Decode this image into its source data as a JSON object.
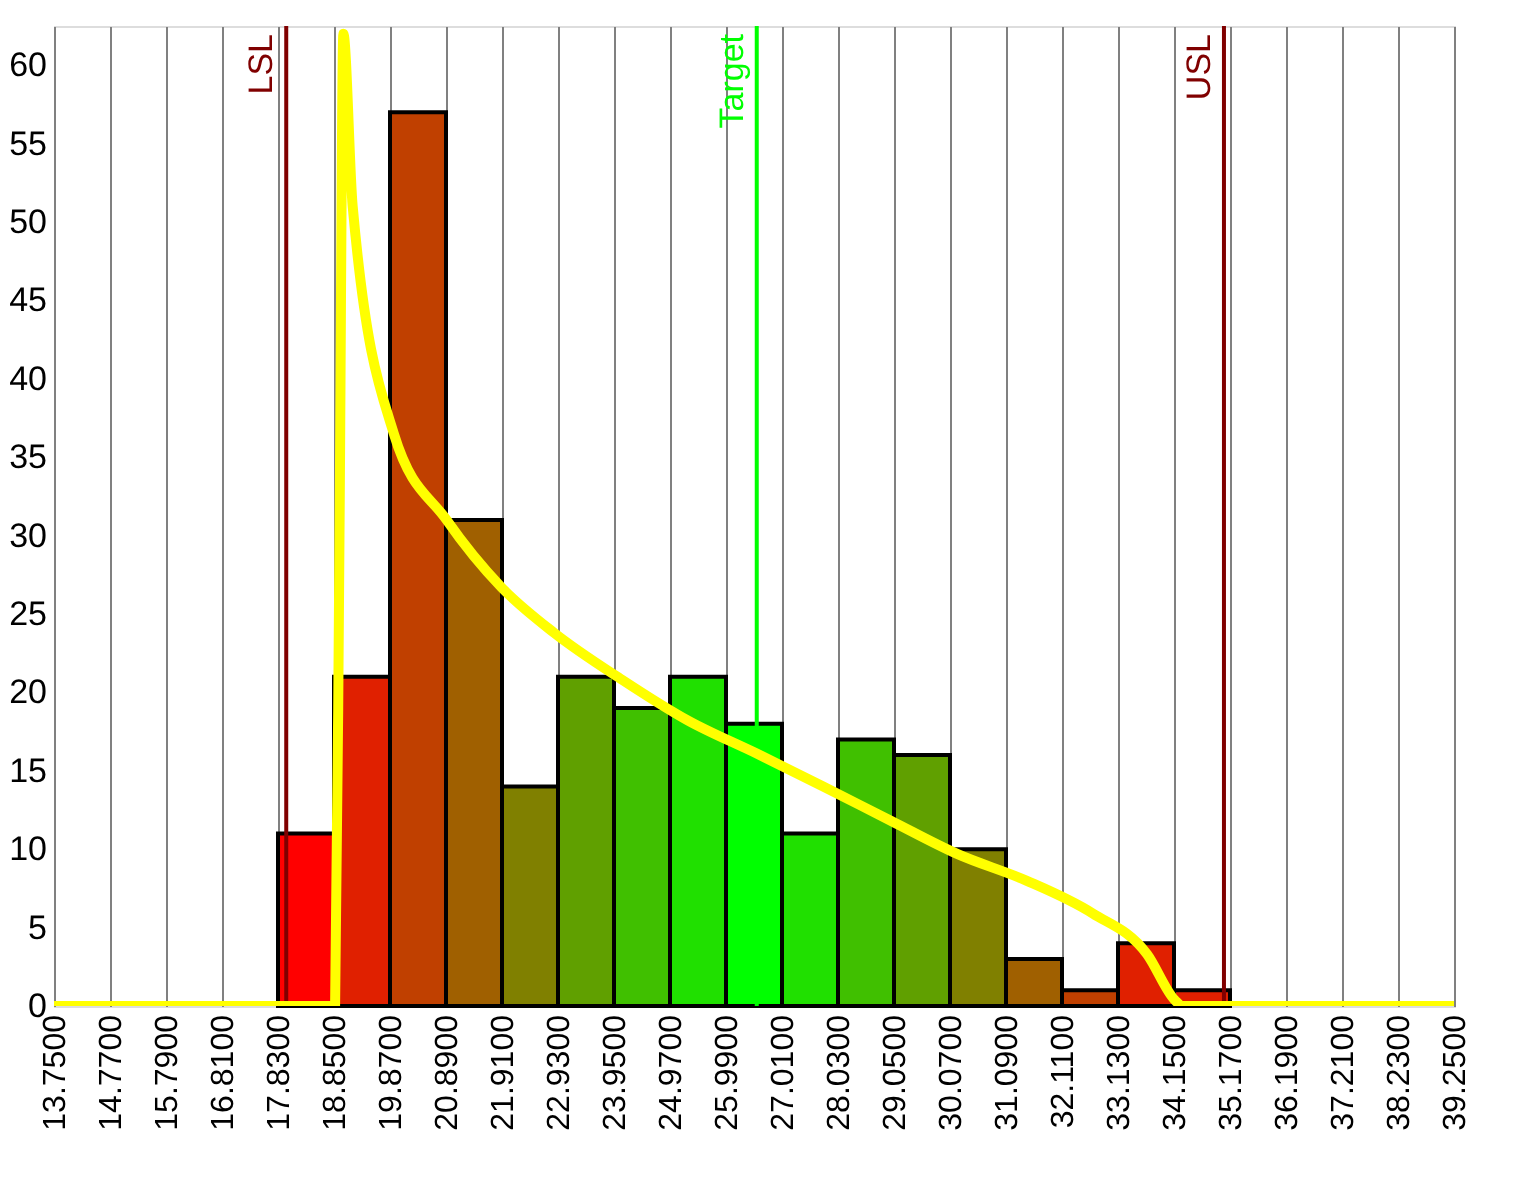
{
  "chart_data": {
    "type": "histogram",
    "bins": [
      13.75,
      14.77,
      15.79,
      16.81,
      17.83,
      18.85,
      19.87,
      20.89,
      21.91,
      22.93,
      23.95,
      24.97,
      25.99,
      27.01,
      28.03,
      29.05,
      30.07,
      31.09,
      32.11,
      33.13,
      34.15,
      35.17,
      36.19,
      37.21,
      38.23,
      39.25
    ],
    "series": [
      {
        "values": [
          0,
          0,
          0,
          0,
          11,
          21,
          57,
          31,
          14,
          21,
          19,
          21,
          18,
          11,
          17,
          16,
          10,
          3,
          1,
          4,
          1,
          0,
          0,
          0,
          0
        ],
        "colors": [
          "#ff0000",
          "#ff0000",
          "#ff0000",
          "#ff0000",
          "#ff0000",
          "#e02000",
          "#c04000",
          "#a06000",
          "#808000",
          "#60a000",
          "#40c000",
          "#20e000",
          "#00ff00",
          "#20e000",
          "#40c000",
          "#60a000",
          "#808000",
          "#a06000",
          "#c04000",
          "#e02000",
          "#e02000",
          "#ff0000",
          "#ff0000",
          "#ff0000",
          "#ff0000"
        ]
      },
      {
        "type": "line",
        "color": "#ffff00",
        "x": [
          13.75,
          18.8,
          18.87,
          18.95,
          19.02,
          19.19,
          19.94,
          20.9,
          21.9,
          22.86,
          24.1,
          25.3,
          26.55,
          27.76,
          29.0,
          30.2,
          31.46,
          32.67,
          33.66,
          34.16,
          34.3,
          39.25
        ],
        "values": [
          0,
          0,
          0,
          30,
          62,
          51,
          36.5,
          31,
          26.7,
          23.8,
          20.8,
          18.2,
          16.1,
          14.0,
          11.8,
          9.7,
          8.0,
          5.9,
          3.3,
          0.4,
          0,
          0
        ]
      }
    ],
    "xlim": [
      13.75,
      39.25
    ],
    "xticks": [
      {
        "value": 13.75,
        "label": "13.7500"
      },
      {
        "value": 14.77,
        "label": "14.7700"
      },
      {
        "value": 15.79,
        "label": "15.7900"
      },
      {
        "value": 16.81,
        "label": "16.8100"
      },
      {
        "value": 17.83,
        "label": "17.8300"
      },
      {
        "value": 18.85,
        "label": "18.8500"
      },
      {
        "value": 19.87,
        "label": "19.8700"
      },
      {
        "value": 20.89,
        "label": "20.8900"
      },
      {
        "value": 21.91,
        "label": "21.9100"
      },
      {
        "value": 22.93,
        "label": "22.9300"
      },
      {
        "value": 23.95,
        "label": "23.9500"
      },
      {
        "value": 24.97,
        "label": "24.9700"
      },
      {
        "value": 25.99,
        "label": "25.9900"
      },
      {
        "value": 27.01,
        "label": "27.0100"
      },
      {
        "value": 28.03,
        "label": "28.0300"
      },
      {
        "value": 29.05,
        "label": "29.0500"
      },
      {
        "value": 30.07,
        "label": "30.0700"
      },
      {
        "value": 31.09,
        "label": "31.0900"
      },
      {
        "value": 32.11,
        "label": "32.1100"
      },
      {
        "value": 33.13,
        "label": "33.1300"
      },
      {
        "value": 34.15,
        "label": "34.1500"
      },
      {
        "value": 35.17,
        "label": "35.1700"
      },
      {
        "value": 36.19,
        "label": "36.1900"
      },
      {
        "value": 37.21,
        "label": "37.2100"
      },
      {
        "value": 38.23,
        "label": "38.2300"
      },
      {
        "value": 39.25,
        "label": "39.2500"
      }
    ],
    "ylim": [
      0,
      62.5
    ],
    "yticks": [
      0,
      5,
      10,
      15,
      20,
      25,
      30,
      35,
      40,
      45,
      50,
      55,
      60
    ],
    "grid": "x",
    "ref_lines": [
      {
        "axis": "x",
        "value": 17.98,
        "label": "LSL",
        "color": "#800000"
      },
      {
        "axis": "x",
        "value": 26.55,
        "label": "Target",
        "color": "#00ff00"
      },
      {
        "axis": "x",
        "value": 35.06,
        "label": "USL",
        "color": "#800000"
      }
    ]
  }
}
